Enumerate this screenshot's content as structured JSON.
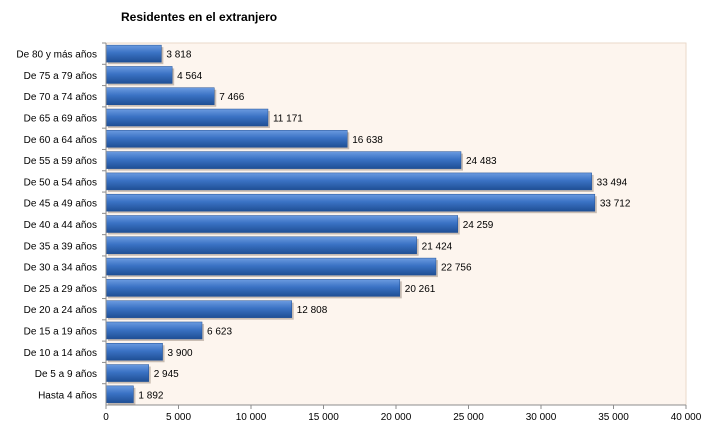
{
  "chart_data": {
    "type": "bar",
    "orientation": "horizontal",
    "title": "Residentes en el extranjero",
    "categories": [
      "De 80 y más años",
      "De 75 a 79 años",
      "De 70 a 74 años",
      "De 65 a 69 años",
      "De 60 a 64 años",
      "De 55 a 59 años",
      "De 50 a 54 años",
      "De 45 a 49 años",
      "De 40 a 44 años",
      "De 35 a 39 años",
      "De 30 a 34 años",
      "De 25 a 29 años",
      "De 20 a 24 años",
      "De 15 a 19 años",
      "De 10 a 14 años",
      "De 5 a 9 años",
      "Hasta 4 años"
    ],
    "values": [
      3818,
      4564,
      7466,
      11171,
      16638,
      24483,
      33494,
      33712,
      24259,
      21424,
      22756,
      20261,
      12808,
      6623,
      3900,
      2945,
      1892
    ],
    "value_labels": [
      "3 818",
      "4 564",
      "7 466",
      "11 171",
      "16 638",
      "24 483",
      "33 494",
      "33 712",
      "24 259",
      "21 424",
      "22 756",
      "20 261",
      "12 808",
      "6 623",
      "3 900",
      "2 945",
      "1 892"
    ],
    "xlim": [
      0,
      40000
    ],
    "x_ticks": [
      0,
      5000,
      10000,
      15000,
      20000,
      25000,
      30000,
      35000,
      40000
    ],
    "x_tick_labels": [
      "0",
      "5 000",
      "10 000",
      "15 000",
      "20 000",
      "25 000",
      "30 000",
      "35 000",
      "40 000"
    ],
    "grid": false,
    "colors": {
      "bar": "#3a72c4",
      "bar_dark": "#1f4f95",
      "plot_background": "#fdf5ee",
      "axis": "#8c8c8c"
    }
  }
}
